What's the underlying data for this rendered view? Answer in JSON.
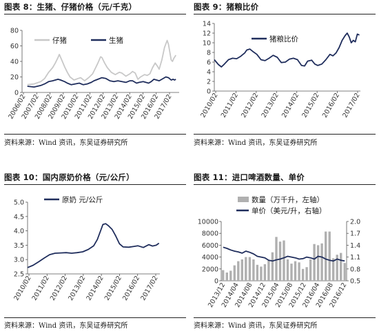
{
  "panels": [
    {
      "title": "图表 8：生猪、仔猪价格（元/千克）",
      "source": "资料来源：Wind 资讯，东吴证券研究所"
    },
    {
      "title": "图表 9：猪粮比价",
      "source": "资料来源：Wind 资讯，东吴证券研究所"
    },
    {
      "title": "图表 10：国内原奶价格（元/公斤）",
      "source": "资料来源：Wind 资讯，东吴证券研究所"
    },
    {
      "title": "图表 11：进口啤酒数量、单价",
      "source": "资料来源：Wind 资讯，东吴证券研究所"
    }
  ],
  "chart_data": [
    {
      "type": "line",
      "title": "图表 8：生猪、仔猪价格（元/千克）",
      "x_tick_labels": [
        "2006/02",
        "2007/02",
        "2008/02",
        "2009/02",
        "2010/02",
        "2011/02",
        "2012/02",
        "2013/02",
        "2014/02",
        "2015/02",
        "2016/02",
        "2017/02"
      ],
      "x_range": [
        2005.6,
        2017.4
      ],
      "ylim": [
        0,
        80
      ],
      "y_ticks": [
        0,
        20,
        40,
        60,
        80
      ],
      "legend": "top",
      "grid": false,
      "series": [
        {
          "name": "仔猪",
          "color": "#c8c8c8",
          "points": [
            [
              2006.0,
              10
            ],
            [
              2006.5,
              11
            ],
            [
              2007.0,
              14
            ],
            [
              2007.3,
              18
            ],
            [
              2007.6,
              26
            ],
            [
              2007.9,
              32
            ],
            [
              2008.1,
              38
            ],
            [
              2008.3,
              45
            ],
            [
              2008.4,
              49
            ],
            [
              2008.6,
              41
            ],
            [
              2008.8,
              33
            ],
            [
              2009.0,
              26
            ],
            [
              2009.2,
              20
            ],
            [
              2009.5,
              16
            ],
            [
              2009.8,
              18
            ],
            [
              2010.0,
              19
            ],
            [
              2010.3,
              15
            ],
            [
              2010.6,
              19
            ],
            [
              2010.9,
              24
            ],
            [
              2011.1,
              31
            ],
            [
              2011.3,
              38
            ],
            [
              2011.5,
              46
            ],
            [
              2011.6,
              45
            ],
            [
              2011.8,
              38
            ],
            [
              2012.0,
              32
            ],
            [
              2012.3,
              26
            ],
            [
              2012.6,
              23
            ],
            [
              2012.9,
              26
            ],
            [
              2013.1,
              25
            ],
            [
              2013.4,
              21
            ],
            [
              2013.7,
              24
            ],
            [
              2013.9,
              27
            ],
            [
              2014.1,
              25
            ],
            [
              2014.3,
              17
            ],
            [
              2014.5,
              20
            ],
            [
              2014.8,
              23
            ],
            [
              2015.0,
              22
            ],
            [
              2015.2,
              24
            ],
            [
              2015.4,
              32
            ],
            [
              2015.6,
              38
            ],
            [
              2015.8,
              33
            ],
            [
              2015.9,
              30
            ],
            [
              2016.1,
              42
            ],
            [
              2016.3,
              58
            ],
            [
              2016.5,
              67
            ],
            [
              2016.6,
              62
            ],
            [
              2016.8,
              42
            ],
            [
              2016.9,
              40
            ],
            [
              2017.0,
              44
            ],
            [
              2017.15,
              48
            ]
          ]
        },
        {
          "name": "生猪",
          "color": "#1f2d5c",
          "points": [
            [
              2006.0,
              8
            ],
            [
              2006.5,
              7
            ],
            [
              2007.0,
              9
            ],
            [
              2007.3,
              11
            ],
            [
              2007.6,
              14
            ],
            [
              2007.9,
              15
            ],
            [
              2008.1,
              16
            ],
            [
              2008.3,
              17
            ],
            [
              2008.5,
              16
            ],
            [
              2008.8,
              14
            ],
            [
              2009.0,
              12
            ],
            [
              2009.3,
              10
            ],
            [
              2009.6,
              11
            ],
            [
              2009.9,
              12
            ],
            [
              2010.2,
              10
            ],
            [
              2010.5,
              11
            ],
            [
              2010.8,
              13
            ],
            [
              2011.0,
              15
            ],
            [
              2011.3,
              17
            ],
            [
              2011.6,
              19
            ],
            [
              2011.9,
              18
            ],
            [
              2012.2,
              15
            ],
            [
              2012.5,
              14
            ],
            [
              2012.8,
              15
            ],
            [
              2013.1,
              14
            ],
            [
              2013.4,
              13
            ],
            [
              2013.7,
              15
            ],
            [
              2013.9,
              15
            ],
            [
              2014.2,
              12
            ],
            [
              2014.4,
              13
            ],
            [
              2014.7,
              14
            ],
            [
              2014.9,
              13
            ],
            [
              2015.1,
              12
            ],
            [
              2015.3,
              14
            ],
            [
              2015.5,
              17
            ],
            [
              2015.7,
              16
            ],
            [
              2015.9,
              15
            ],
            [
              2016.1,
              17
            ],
            [
              2016.4,
              20
            ],
            [
              2016.6,
              19
            ],
            [
              2016.8,
              16
            ],
            [
              2016.95,
              17
            ],
            [
              2017.05,
              16
            ],
            [
              2017.15,
              17
            ]
          ]
        }
      ]
    },
    {
      "type": "line",
      "title": "图表 9：猪粮比价",
      "x_tick_labels": [
        "2010/02",
        "2011/02",
        "2012/02",
        "2013/02",
        "2014/02",
        "2015/02",
        "2016/02",
        "2017/02"
      ],
      "x_range": [
        2010.0,
        2017.2
      ],
      "ylim": [
        0,
        14
      ],
      "y_ticks": [
        0,
        2,
        4,
        6,
        8,
        10,
        12,
        14
      ],
      "legend": "top-left",
      "grid": false,
      "series": [
        {
          "name": "猪粮比价",
          "color": "#1f2d5c",
          "points": [
            [
              2010.0,
              6.5
            ],
            [
              2010.2,
              5.5
            ],
            [
              2010.35,
              5.0
            ],
            [
              2010.5,
              5.6
            ],
            [
              2010.7,
              6.5
            ],
            [
              2010.9,
              6.8
            ],
            [
              2011.1,
              6.7
            ],
            [
              2011.3,
              7.2
            ],
            [
              2011.5,
              7.9
            ],
            [
              2011.6,
              8.5
            ],
            [
              2011.75,
              8.7
            ],
            [
              2011.9,
              8.2
            ],
            [
              2012.1,
              7.6
            ],
            [
              2012.3,
              6.5
            ],
            [
              2012.5,
              6.3
            ],
            [
              2012.7,
              6.8
            ],
            [
              2012.9,
              7.4
            ],
            [
              2013.1,
              7.0
            ],
            [
              2013.3,
              5.9
            ],
            [
              2013.5,
              6.0
            ],
            [
              2013.7,
              6.6
            ],
            [
              2013.9,
              6.8
            ],
            [
              2014.1,
              6.5
            ],
            [
              2014.3,
              5.3
            ],
            [
              2014.45,
              5.2
            ],
            [
              2014.6,
              6.2
            ],
            [
              2014.8,
              6.4
            ],
            [
              2014.95,
              5.6
            ],
            [
              2015.1,
              5.3
            ],
            [
              2015.3,
              5.6
            ],
            [
              2015.5,
              6.5
            ],
            [
              2015.7,
              7.6
            ],
            [
              2015.85,
              7.3
            ],
            [
              2016.0,
              7.9
            ],
            [
              2016.15,
              9.0
            ],
            [
              2016.3,
              10.5
            ],
            [
              2016.45,
              11.5
            ],
            [
              2016.55,
              12.0
            ],
            [
              2016.65,
              11.2
            ],
            [
              2016.75,
              10.0
            ],
            [
              2016.85,
              10.5
            ],
            [
              2016.95,
              10.2
            ],
            [
              2017.05,
              11.8
            ],
            [
              2017.15,
              11.6
            ]
          ]
        }
      ]
    },
    {
      "type": "line",
      "title": "图表 10：国内原奶价格（元/公斤）",
      "x_tick_labels": [
        "2010/02",
        "2011/02",
        "2012/02",
        "2013/02",
        "2014/02",
        "2015/02",
        "2016/02",
        "2017/02"
      ],
      "x_range": [
        2010.0,
        2017.2
      ],
      "ylim": [
        2.5,
        5.0
      ],
      "y_ticks": [
        2.5,
        3.0,
        3.5,
        4.0,
        4.5,
        5.0
      ],
      "legend": "top",
      "grid": false,
      "series": [
        {
          "name": "原奶 元/公斤",
          "color": "#1f2d5c",
          "points": [
            [
              2010.0,
              2.72
            ],
            [
              2010.3,
              2.8
            ],
            [
              2010.6,
              2.92
            ],
            [
              2010.9,
              3.05
            ],
            [
              2011.2,
              3.17
            ],
            [
              2011.5,
              3.22
            ],
            [
              2011.8,
              3.23
            ],
            [
              2012.1,
              3.24
            ],
            [
              2012.4,
              3.22
            ],
            [
              2012.7,
              3.24
            ],
            [
              2013.0,
              3.27
            ],
            [
              2013.3,
              3.35
            ],
            [
              2013.6,
              3.48
            ],
            [
              2013.8,
              3.7
            ],
            [
              2014.0,
              4.05
            ],
            [
              2014.1,
              4.22
            ],
            [
              2014.25,
              4.25
            ],
            [
              2014.4,
              4.18
            ],
            [
              2014.6,
              4.05
            ],
            [
              2014.8,
              3.82
            ],
            [
              2015.0,
              3.55
            ],
            [
              2015.2,
              3.44
            ],
            [
              2015.5,
              3.43
            ],
            [
              2015.8,
              3.46
            ],
            [
              2016.0,
              3.48
            ],
            [
              2016.3,
              3.42
            ],
            [
              2016.6,
              3.52
            ],
            [
              2016.8,
              3.47
            ],
            [
              2017.0,
              3.5
            ],
            [
              2017.15,
              3.57
            ]
          ]
        }
      ]
    },
    {
      "type": "bar",
      "title": "图表 11：进口啤酒数量、单价",
      "x_tick_labels": [
        "2013/12",
        "2014/04",
        "2014/08",
        "2014/12",
        "2015/04",
        "2015/08",
        "2015/12",
        "2016/04",
        "2016/08",
        "2016/12"
      ],
      "left_axis": {
        "ylim": [
          0,
          10000
        ],
        "ticks": [
          0,
          2000,
          4000,
          6000,
          8000,
          10000
        ],
        "label": "左轴"
      },
      "right_axis": {
        "ylim": [
          0.5,
          2.0
        ],
        "ticks": [
          0.5,
          0.8,
          1.1,
          1.4,
          1.7,
          2.0
        ],
        "label": "右轴"
      },
      "legend": "top",
      "grid": false,
      "series": [
        {
          "name": "数量（万千升，左轴）",
          "type": "bar",
          "axis": "left",
          "color": "#b0b0b0",
          "values": [
            1800,
            1400,
            1700,
            2600,
            3300,
            3600,
            4000,
            4000,
            3600,
            2700,
            2400,
            2800,
            3400,
            4800,
            7400,
            6600,
            6800,
            3600,
            2900,
            3300,
            3100,
            2000,
            2300,
            3600,
            6200,
            6000,
            6300,
            8300,
            8300,
            3800,
            4400,
            4700,
            3000
          ]
        },
        {
          "name": "单价（美元/升，右轴）",
          "type": "line",
          "axis": "right",
          "color": "#1f2d5c",
          "values": [
            1.35,
            1.32,
            1.28,
            1.25,
            1.23,
            1.2,
            1.25,
            1.22,
            1.18,
            1.12,
            1.1,
            1.08,
            1.02,
            1.0,
            1.03,
            1.05,
            1.08,
            1.12,
            1.1,
            1.08,
            1.05,
            1.06,
            1.1,
            1.08,
            1.05,
            1.12,
            1.1,
            1.05,
            1.02,
            1.0,
            1.05,
            1.02,
            1.0
          ]
        }
      ]
    }
  ]
}
